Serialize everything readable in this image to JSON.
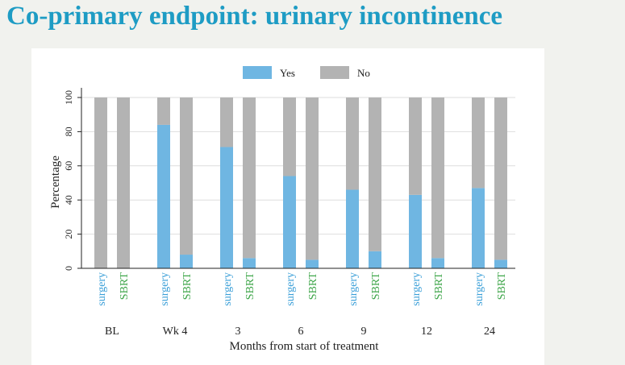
{
  "slide": {
    "title": "Co-primary endpoint: urinary incontinence"
  },
  "colors": {
    "title": "#1e9cc4",
    "yes": "#6fb6e2",
    "no": "#b3b3b3",
    "surgery_label": "#3a9fd8",
    "sbrt_label": "#3fa64a",
    "panel": "#ffffff",
    "background": "#f1f2ee"
  },
  "chart_data": {
    "type": "bar",
    "stacked": true,
    "title": "",
    "xlabel": "Months from start of treatment",
    "ylabel": "Percentage",
    "ylim": [
      0,
      100
    ],
    "yticks": [
      0,
      20,
      40,
      60,
      80,
      100
    ],
    "legend": {
      "position": "top",
      "entries": [
        "Yes",
        "No"
      ]
    },
    "grid": true,
    "arms": [
      "surgery",
      "SBRT"
    ],
    "categories": [
      "BL",
      "Wk 4",
      "3",
      "6",
      "9",
      "12",
      "24"
    ],
    "series": [
      {
        "name": "Yes",
        "surgery": [
          0,
          84,
          71,
          54,
          46,
          43,
          47
        ],
        "SBRT": [
          0,
          8,
          6,
          5,
          10,
          6,
          5
        ]
      },
      {
        "name": "No",
        "surgery": [
          100,
          16,
          29,
          46,
          54,
          57,
          53
        ],
        "SBRT": [
          100,
          92,
          94,
          95,
          90,
          94,
          95
        ]
      }
    ]
  }
}
